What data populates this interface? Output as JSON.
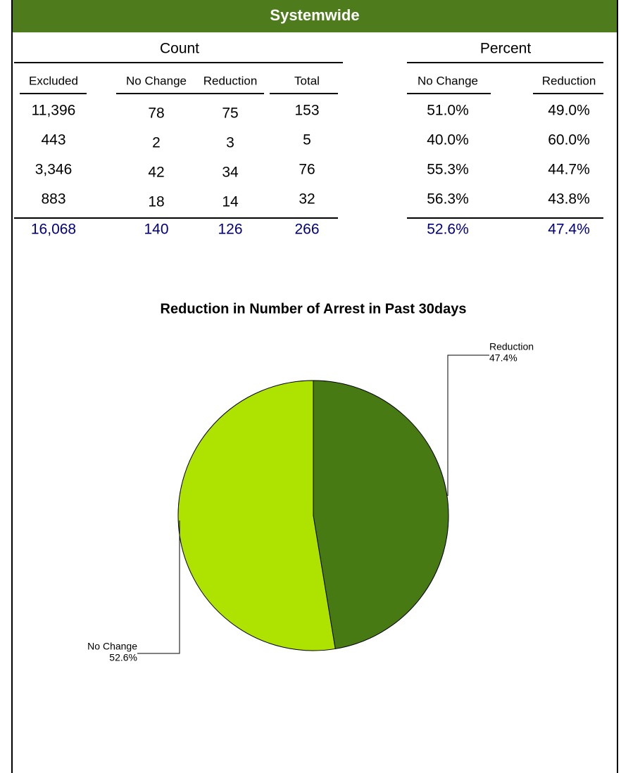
{
  "header": {
    "title": "Systemwide"
  },
  "table": {
    "groups": [
      "Count",
      "Percent"
    ],
    "columns": [
      "Excluded",
      "No Change",
      "Reduction",
      "Total",
      "No Change",
      "Reduction"
    ],
    "rows": [
      [
        "11,396",
        "78",
        "75",
        "153",
        "51.0%",
        "49.0%"
      ],
      [
        "443",
        "2",
        "3",
        "5",
        "40.0%",
        "60.0%"
      ],
      [
        "3,346",
        "42",
        "34",
        "76",
        "55.3%",
        "44.7%"
      ],
      [
        "883",
        "18",
        "14",
        "32",
        "56.3%",
        "43.8%"
      ]
    ],
    "totals": [
      "16,068",
      "140",
      "126",
      "266",
      "52.6%",
      "47.4%"
    ]
  },
  "chart_data": {
    "type": "pie",
    "title": "Reduction in Number of Arrest in Past 30days",
    "categories": [
      "Reduction",
      "No Change"
    ],
    "values": [
      47.4,
      52.6
    ],
    "value_labels": [
      "47.4%",
      "52.6%"
    ],
    "colors": [
      "#477a12",
      "#aee200"
    ]
  }
}
